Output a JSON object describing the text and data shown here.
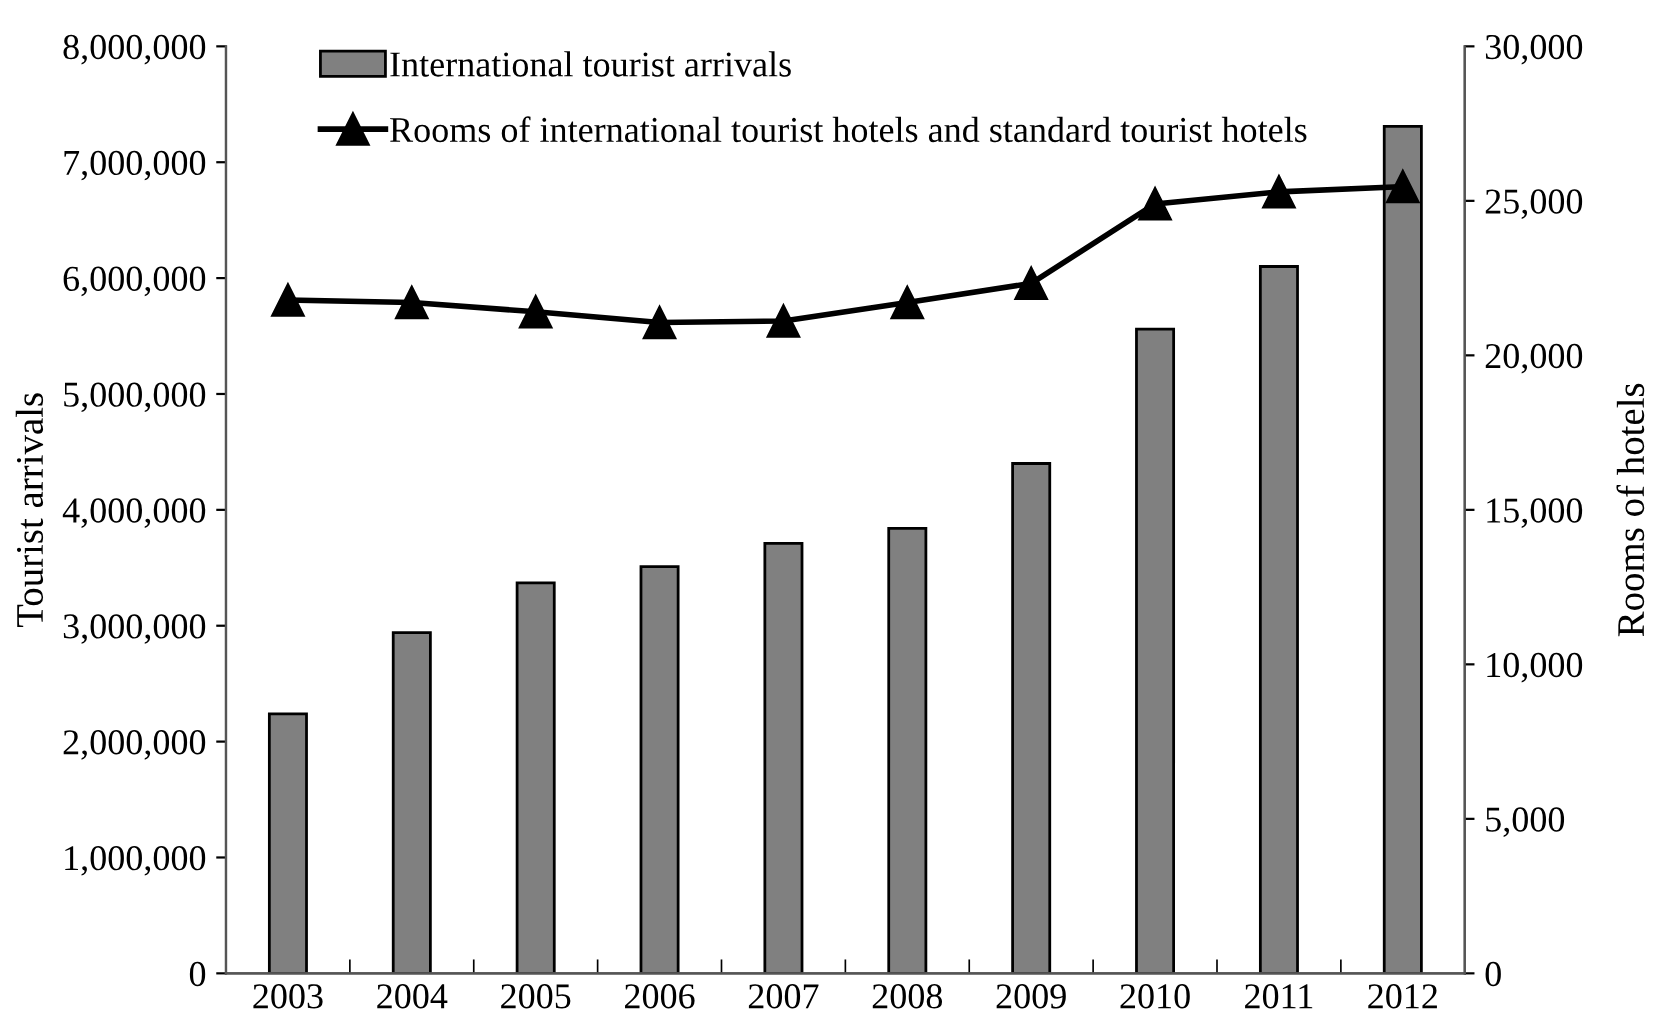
{
  "chart_data": {
    "type": "bar",
    "ylabel": "Tourist arrivals",
    "y2label": "Rooms of hotels",
    "categories": [
      "2003",
      "2004",
      "2005",
      "2006",
      "2007",
      "2008",
      "2009",
      "2010",
      "2011",
      "2012"
    ],
    "series": [
      {
        "name": "International tourist arrivals",
        "color": "#808080",
        "values": [
          2240000,
          2940000,
          3370000,
          3510000,
          3710000,
          3840000,
          4400000,
          5560000,
          6100000,
          7310000
        ]
      },
      {
        "name": "Rooms of international tourist hotels and standard tourist hotels",
        "type": "line",
        "axis": "y2",
        "color": "#000000",
        "marker": "triangle",
        "values": [
          21790,
          21710,
          21410,
          21060,
          21110,
          21710,
          22330,
          24900,
          25290,
          25460
        ]
      }
    ],
    "ylim": [
      0,
      8000000
    ],
    "yticks": [
      {
        "value": 0,
        "label": "0"
      },
      {
        "value": 1000000,
        "label": "1,000,000"
      },
      {
        "value": 2000000,
        "label": "2,000,000"
      },
      {
        "value": 3000000,
        "label": "3,000,000"
      },
      {
        "value": 4000000,
        "label": "4,000,000"
      },
      {
        "value": 5000000,
        "label": "5,000,000"
      },
      {
        "value": 6000000,
        "label": "6,000,000"
      },
      {
        "value": 7000000,
        "label": "7,000,000"
      },
      {
        "value": 8000000,
        "label": "8,000,000"
      }
    ],
    "y2lim": [
      0,
      30000
    ],
    "y2ticks": [
      {
        "value": 0,
        "label": "0"
      },
      {
        "value": 5000,
        "label": "5,000"
      },
      {
        "value": 10000,
        "label": "10,000"
      },
      {
        "value": 15000,
        "label": "15,000"
      },
      {
        "value": 20000,
        "label": "20,000"
      },
      {
        "value": 25000,
        "label": "25,000"
      },
      {
        "value": 30000,
        "label": "30,000"
      }
    ],
    "grid": false,
    "legend": "top left"
  }
}
